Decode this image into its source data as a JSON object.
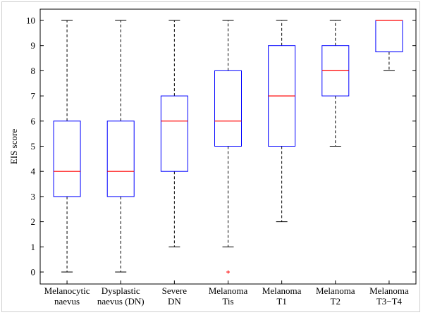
{
  "chart_data": {
    "type": "box",
    "title": "",
    "xlabel": "",
    "ylabel": "EIS score",
    "ylim": [
      0,
      10
    ],
    "yticks": [
      "0",
      "1",
      "2",
      "3",
      "4",
      "5",
      "6",
      "7",
      "8",
      "9",
      "10"
    ],
    "grid": false,
    "categories": [
      [
        "Melanocytic",
        "naevus"
      ],
      [
        "Dysplastic",
        "naevus (DN)"
      ],
      [
        "Severe",
        "DN"
      ],
      [
        "Melanoma",
        "Tis"
      ],
      [
        "Melanoma",
        "T1"
      ],
      [
        "Melanoma",
        "T2"
      ],
      [
        "Melanoma",
        "T3−T4"
      ]
    ],
    "boxes": [
      {
        "whisker_low": 0,
        "q1": 3,
        "median": 4,
        "q3": 6,
        "whisker_high": 10,
        "outliers": []
      },
      {
        "whisker_low": 0,
        "q1": 3,
        "median": 4,
        "q3": 6,
        "whisker_high": 10,
        "outliers": []
      },
      {
        "whisker_low": 1,
        "q1": 4,
        "median": 6,
        "q3": 7,
        "whisker_high": 10,
        "outliers": []
      },
      {
        "whisker_low": 1,
        "q1": 5,
        "median": 6,
        "q3": 8,
        "whisker_high": 10,
        "outliers": [
          0
        ]
      },
      {
        "whisker_low": 2,
        "q1": 5,
        "median": 7,
        "q3": 9,
        "whisker_high": 10,
        "outliers": []
      },
      {
        "whisker_low": 5,
        "q1": 7,
        "median": 8,
        "q3": 9,
        "whisker_high": 10,
        "outliers": []
      },
      {
        "whisker_low": 8,
        "q1": 8.75,
        "median": 10,
        "q3": 10,
        "whisker_high": 10,
        "outliers": []
      }
    ],
    "colors": {
      "box": "#0000ff",
      "median": "#ff0000",
      "whisker": "#000000",
      "outlier": "#ff0000",
      "axes": "#000000"
    }
  }
}
